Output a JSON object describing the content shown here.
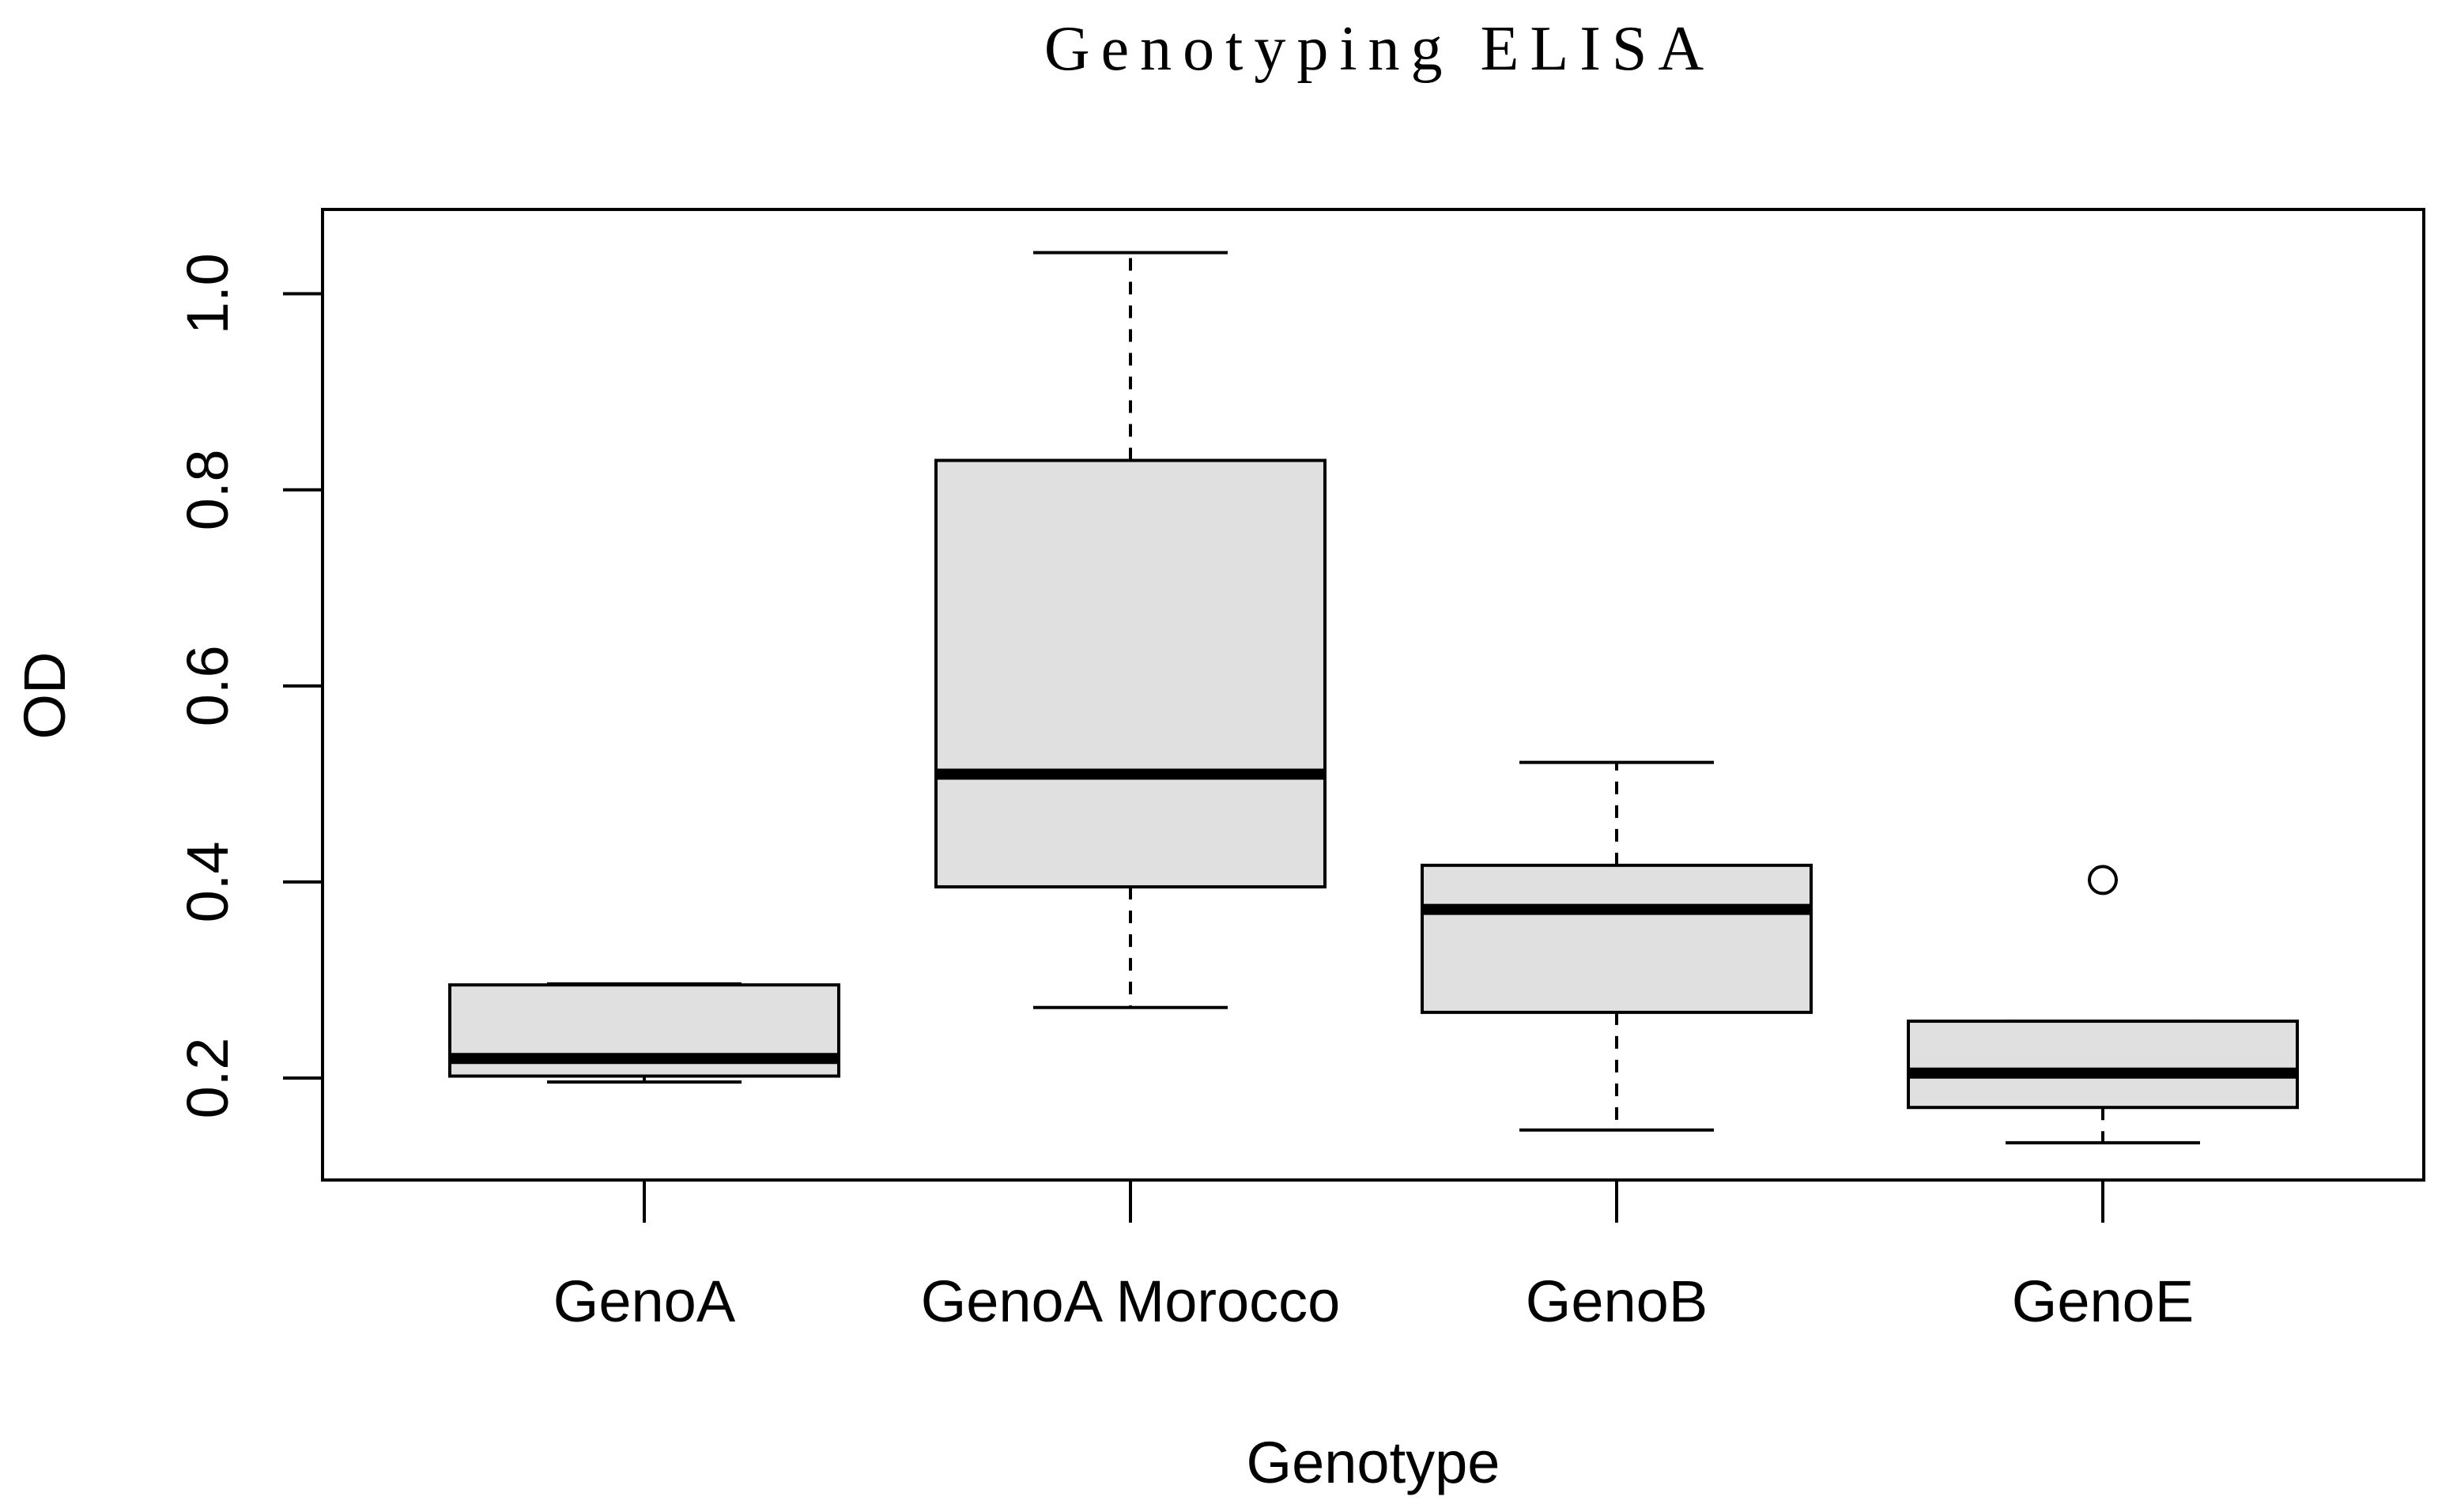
{
  "chart_data": {
    "type": "boxplot",
    "title": "Genotyping ELISA",
    "xlabel": "Genotype",
    "ylabel": "OD",
    "categories": [
      "GenoA",
      "GenoA Morocco",
      "GenoB",
      "GenoE"
    ],
    "boxes": [
      {
        "name": "GenoA",
        "whisker_low": 0.196,
        "q1": 0.202,
        "median": 0.22,
        "q3": 0.295,
        "whisker_high": 0.296,
        "outliers": []
      },
      {
        "name": "GenoA Morocco",
        "whisker_low": 0.272,
        "q1": 0.395,
        "median": 0.51,
        "q3": 0.83,
        "whisker_high": 1.042,
        "outliers": []
      },
      {
        "name": "GenoB",
        "whisker_low": 0.147,
        "q1": 0.267,
        "median": 0.372,
        "q3": 0.417,
        "whisker_high": 0.522,
        "outliers": []
      },
      {
        "name": "GenoE",
        "whisker_low": 0.134,
        "q1": 0.17,
        "median": 0.205,
        "q3": 0.258,
        "whisker_high": 0.258,
        "outliers": [
          0.402
        ]
      }
    ],
    "y_ticks": [
      0.2,
      0.4,
      0.6,
      0.8,
      1.0
    ],
    "y_tick_labels": [
      "0.2",
      "0.4",
      "0.6",
      "0.8",
      "1.0"
    ],
    "ylim": [
      0.096,
      1.086
    ],
    "grid": false,
    "box_fill": "#e0e0e0",
    "line_color": "#000000"
  }
}
